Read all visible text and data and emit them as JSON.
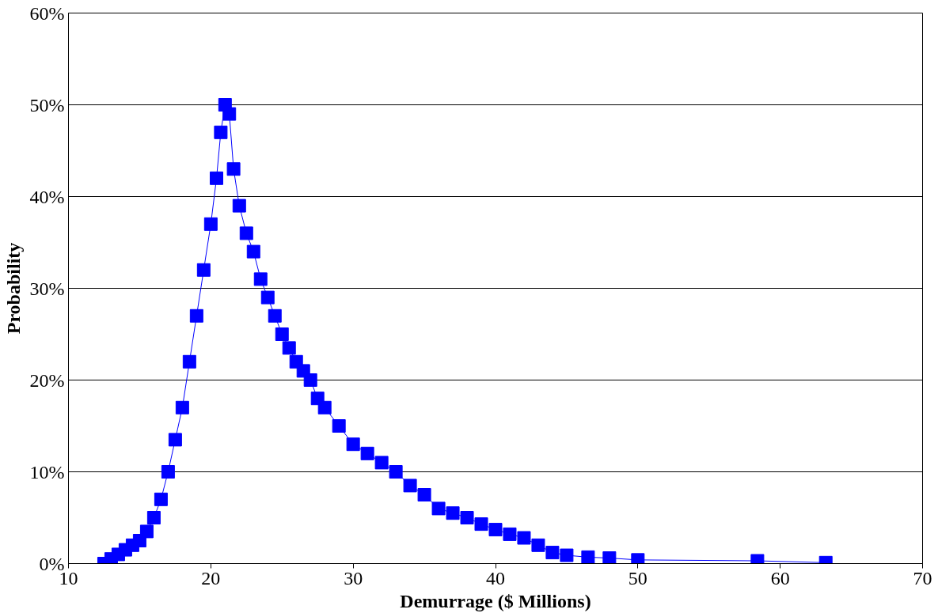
{
  "chart_data": {
    "type": "line",
    "xlabel": "Demurrage ($ Millions)",
    "ylabel": "Probability",
    "x": [
      12.5,
      13,
      13.5,
      14,
      14.5,
      15,
      15.5,
      16,
      16.5,
      17,
      17.5,
      18,
      18.5,
      19,
      19.5,
      20,
      20.4,
      20.7,
      21,
      21.3,
      21.6,
      22,
      22.5,
      23,
      23.5,
      24,
      24.5,
      25,
      25.5,
      26,
      26.5,
      27,
      27.5,
      28,
      29,
      30,
      31,
      32,
      33,
      34,
      35,
      36,
      37,
      38,
      39,
      40,
      41,
      42,
      43,
      44,
      45,
      46.5,
      48,
      50,
      58.4,
      63.2
    ],
    "series": [
      {
        "color": "#0000ff",
        "values": [
          0,
          0.5,
          1,
          1.5,
          2,
          2.5,
          3.5,
          5,
          7,
          10,
          13.5,
          17,
          22,
          27,
          32,
          37,
          42,
          47,
          50,
          49,
          43,
          39,
          36,
          34,
          31,
          29,
          27,
          25,
          23.5,
          22,
          21,
          20,
          18,
          17,
          15,
          13,
          12,
          11,
          10,
          8.5,
          7.5,
          6,
          5.5,
          5,
          4.3,
          3.7,
          3.2,
          2.8,
          2,
          1.2,
          0.9,
          0.7,
          0.6,
          0.4,
          0.3,
          0.1
        ]
      }
    ],
    "xlim": [
      10,
      70
    ],
    "xticks": [
      10,
      20,
      30,
      40,
      50,
      60,
      70
    ],
    "ylim": [
      0,
      60
    ],
    "yticks": [
      {
        "value": 0,
        "label": "0%"
      },
      {
        "value": 10,
        "label": "10%"
      },
      {
        "value": 20,
        "label": "20%"
      },
      {
        "value": 30,
        "label": "30%"
      },
      {
        "value": 40,
        "label": "40%"
      },
      {
        "value": 50,
        "label": "50%"
      },
      {
        "value": 60,
        "label": "60%"
      }
    ],
    "grid": "y",
    "marker": "square",
    "line_style": "solid"
  }
}
